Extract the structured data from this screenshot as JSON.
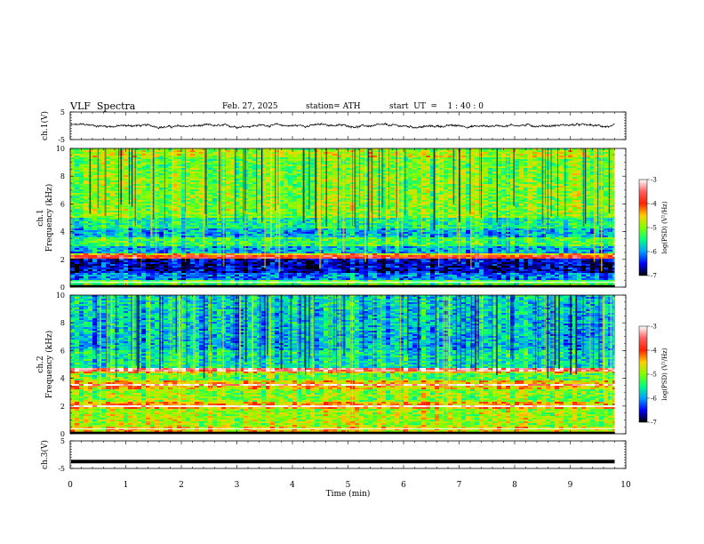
{
  "header": {
    "title": "VLF  Spectra",
    "date": "Feb. 27, 2025",
    "station": "station= ATH",
    "start_ut": "start  UT  =    1 : 40 : 0"
  },
  "chart_data": [
    {
      "type": "line",
      "panel": "ch1-waveform",
      "ylabel": "ch.1(V)",
      "ylim": [
        -5,
        5
      ],
      "y_ticks": [
        "5",
        "-5"
      ],
      "xlim": [
        0,
        10
      ],
      "x_ticks": [
        "0",
        "1",
        "2",
        "3",
        "4",
        "5",
        "6",
        "7",
        "8",
        "9",
        "10"
      ],
      "series": [
        {
          "values_summary": "noisy signal centered near 0 V, amplitude about ±1 V, from 0 to 9.8 min"
        }
      ],
      "line_color": "#000000"
    },
    {
      "type": "heatmap",
      "panel": "ch1-spectrogram",
      "ylabel_line1": "ch.1",
      "ylabel_line2": "Frequency (kHz)",
      "ylim": [
        0,
        10
      ],
      "y_ticks": [
        "10",
        "8",
        "6",
        "4",
        "2",
        "0"
      ],
      "xlim": [
        0,
        10
      ],
      "data_extent_min": 9.8,
      "colorbar": {
        "label": "log(PSD) (V²/Hz)",
        "range": [
          -7,
          -3
        ],
        "ticks": [
          "-3",
          "-4",
          "-5",
          "-6",
          "-7"
        ],
        "colors": [
          "#000000",
          "#0000ff",
          "#00a0ff",
          "#00ff80",
          "#80ff00",
          "#ffd000",
          "#ff2000",
          "#ff6060",
          "#ffffff"
        ]
      }
    },
    {
      "type": "heatmap",
      "panel": "ch2-spectrogram",
      "ylabel_line1": "ch.2",
      "ylabel_line2": "Frequency (kHz)",
      "ylim": [
        0,
        10
      ],
      "y_ticks": [
        "10",
        "8",
        "6",
        "4",
        "2",
        "0"
      ],
      "xlim": [
        0,
        10
      ],
      "data_extent_min": 9.8,
      "colorbar": {
        "label": "log(PSD) (V²/Hz)",
        "range": [
          -7,
          -3
        ],
        "ticks": [
          "-3",
          "-4",
          "-5",
          "-6",
          "-7"
        ],
        "colors": [
          "#000000",
          "#0000ff",
          "#00a0ff",
          "#00ff80",
          "#80ff00",
          "#ffd000",
          "#ff2000",
          "#ff6060",
          "#ffffff"
        ]
      }
    },
    {
      "type": "line",
      "panel": "ch3-waveform",
      "ylabel": "ch.3(V)",
      "ylim": [
        -5,
        5
      ],
      "y_ticks": [
        "5",
        "-5"
      ],
      "xlim": [
        0,
        10
      ],
      "xlabel": "Time  (min)",
      "x_ticks": [
        "0",
        "1",
        "2",
        "3",
        "4",
        "5",
        "6",
        "7",
        "8",
        "9",
        "10"
      ],
      "series": [
        {
          "values_summary": "flat thick line near -2.5 V from 0 to 9.8 min",
          "level": -2.5
        }
      ],
      "line_color": "#000000"
    }
  ]
}
